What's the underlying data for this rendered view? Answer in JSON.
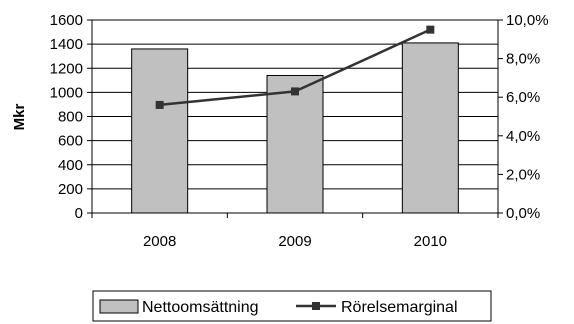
{
  "chart_data": {
    "type": "bar",
    "categories": [
      "2008",
      "2009",
      "2010"
    ],
    "ylabel": "Mkr",
    "ylim": [
      0,
      1600
    ],
    "yticks": [
      "0",
      "200",
      "400",
      "600",
      "800",
      "1000",
      "1200",
      "1400",
      "1600"
    ],
    "y2lim": [
      0,
      10
    ],
    "y2ticks": [
      "0,0%",
      "2,0%",
      "4,0%",
      "6,0%",
      "8,0%",
      "10,0%"
    ],
    "grid": true,
    "legend_position": "bottom",
    "series": [
      {
        "name": "Nettoomsättning",
        "type": "bar",
        "axis": "left",
        "values": [
          1360,
          1140,
          1410
        ],
        "color": "#c0c0c0"
      },
      {
        "name": "Rörelsemarginal",
        "type": "line",
        "axis": "right",
        "values": [
          5.6,
          6.3,
          9.5
        ],
        "color": "#333333"
      }
    ]
  }
}
